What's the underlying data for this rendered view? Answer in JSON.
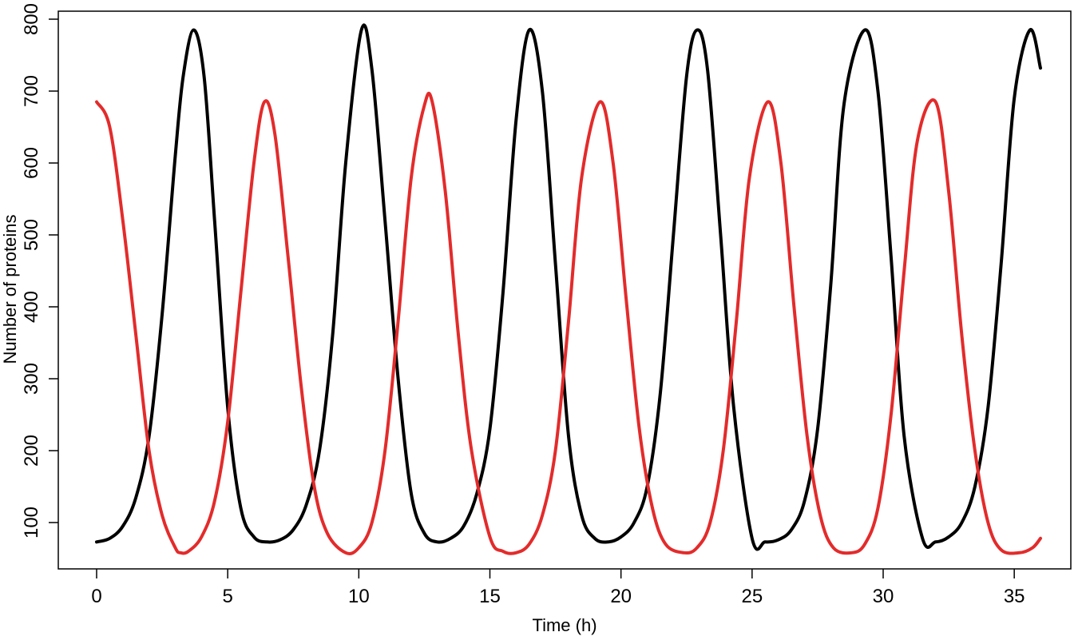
{
  "chart_data": {
    "type": "line",
    "title": "",
    "xlabel": "Time (h)",
    "ylabel": "Number of proteins",
    "xlim": [
      0,
      36
    ],
    "ylim": [
      50,
      800
    ],
    "x_ticks": [
      0,
      5,
      10,
      15,
      20,
      25,
      30,
      35
    ],
    "y_ticks": [
      100,
      200,
      300,
      400,
      500,
      600,
      700,
      800
    ],
    "grid": false,
    "legend": "none",
    "series": [
      {
        "color": "#000000",
        "x": [
          0,
          0.5,
          1,
          1.5,
          2,
          2.5,
          3,
          3.3,
          3.7,
          4.1,
          4.5,
          5,
          5.5,
          6,
          6.5,
          7,
          7.5,
          8,
          8.5,
          9,
          9.5,
          10.1,
          10.5,
          11,
          11.5,
          12,
          12.5,
          13,
          13.5,
          14,
          14.5,
          15,
          15.5,
          16,
          16.5,
          17,
          17.5,
          18,
          18.5,
          19,
          19.5,
          20,
          20.5,
          21,
          21.5,
          22,
          22.5,
          22.9,
          23.3,
          23.8,
          24.3,
          25,
          25.5,
          26,
          26.5,
          27,
          27.5,
          28,
          28.5,
          29.3,
          29.8,
          30.3,
          30.8,
          31.5,
          32,
          32.5,
          33,
          33.5,
          34,
          34.5,
          35,
          35.6,
          36
        ],
        "y": [
          73,
          78,
          95,
          135,
          220,
          390,
          610,
          720,
          785,
          720,
          520,
          260,
          120,
          80,
          73,
          76,
          90,
          125,
          200,
          360,
          600,
          785,
          730,
          520,
          300,
          140,
          85,
          73,
          78,
          95,
          140,
          230,
          420,
          660,
          785,
          700,
          460,
          220,
          110,
          78,
          73,
          80,
          100,
          150,
          280,
          500,
          720,
          785,
          730,
          500,
          260,
          78,
          73,
          76,
          90,
          130,
          230,
          430,
          680,
          785,
          700,
          470,
          220,
          78,
          73,
          80,
          100,
          150,
          260,
          460,
          690,
          785,
          732
        ]
      },
      {
        "color": "#e32b2b",
        "x": [
          0,
          0.5,
          1,
          1.5,
          2,
          2.5,
          3,
          3.2,
          3.5,
          4,
          4.5,
          5,
          5.5,
          6,
          6.4,
          6.8,
          7.3,
          7.8,
          8.3,
          8.8,
          9.5,
          10,
          10.5,
          11,
          11.5,
          12,
          12.5,
          12.8,
          13.3,
          13.8,
          14.3,
          15,
          15.5,
          16,
          16.5,
          17,
          17.5,
          18,
          18.5,
          19.2,
          19.7,
          20.2,
          20.7,
          21.2,
          21.7,
          22.4,
          22.9,
          23.4,
          23.9,
          24.4,
          24.9,
          25.6,
          26.1,
          26.6,
          27.1,
          27.6,
          28.1,
          28.8,
          29.3,
          29.8,
          30.3,
          30.8,
          31.3,
          32,
          32.5,
          33,
          33.5,
          34,
          34.5,
          35.2,
          35.7,
          36
        ],
        "y": [
          685,
          650,
          520,
          360,
          200,
          110,
          65,
          58,
          60,
          80,
          130,
          240,
          420,
          600,
          685,
          640,
          470,
          290,
          150,
          85,
          58,
          65,
          100,
          200,
          380,
          580,
          680,
          685,
          560,
          360,
          200,
          80,
          60,
          58,
          70,
          110,
          200,
          380,
          580,
          685,
          600,
          410,
          230,
          120,
          70,
          58,
          65,
          100,
          200,
          380,
          580,
          685,
          600,
          400,
          220,
          110,
          65,
          58,
          70,
          120,
          250,
          450,
          630,
          685,
          560,
          360,
          200,
          100,
          62,
          58,
          65,
          78
        ]
      }
    ]
  }
}
